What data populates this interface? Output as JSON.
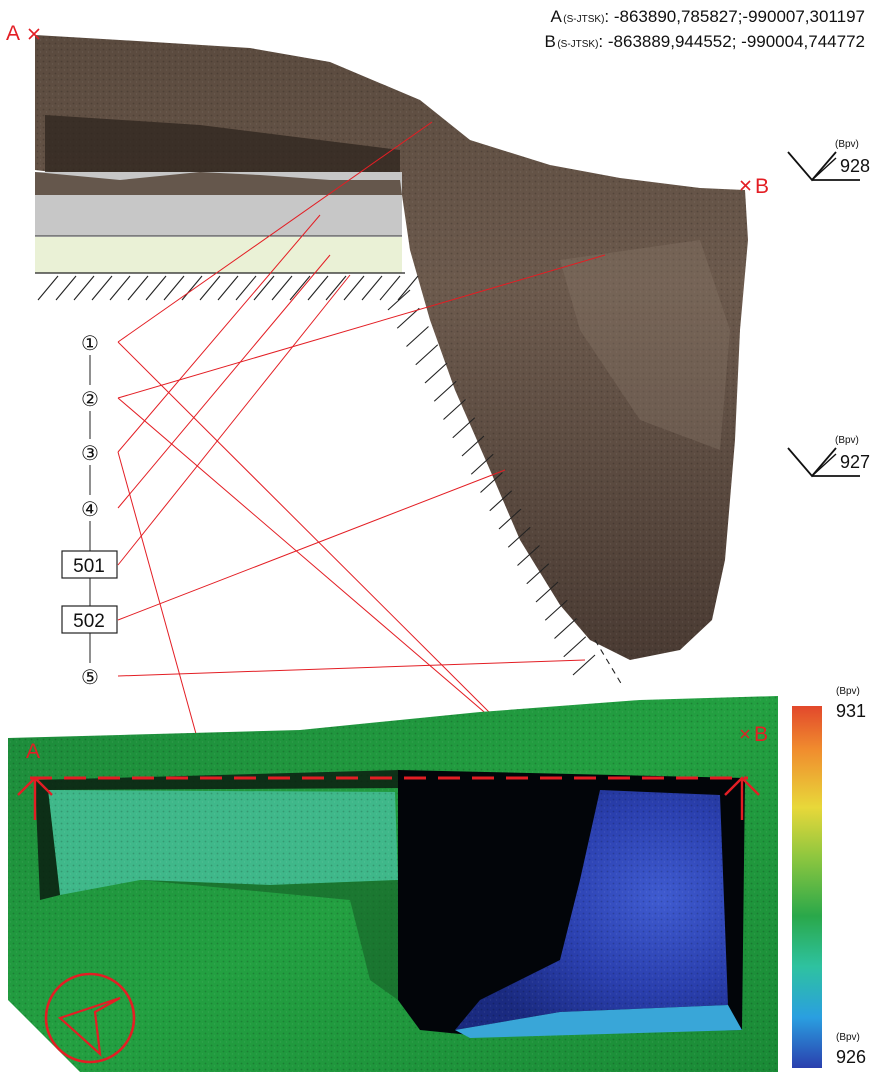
{
  "header": {
    "point_a": {
      "name": "A",
      "system": "(S-JTSK)",
      "coords": ": -863890,785827;-990007,301197"
    },
    "point_b": {
      "name": "B",
      "system": "(S-JTSK)",
      "coords": ": -863889,944552;   -990004,744772"
    }
  },
  "section": {
    "label_a": "A",
    "label_b": "B",
    "levels": [
      {
        "unit": "(Bpv)",
        "value": "928"
      },
      {
        "unit": "(Bpv)",
        "value": "927"
      }
    ]
  },
  "layers": [
    "①",
    "②",
    "③",
    "④",
    "501",
    "502",
    "⑤"
  ],
  "plan": {
    "label_a": "A",
    "label_b": "B"
  },
  "color_scale": {
    "unit_top": "(Bpv)",
    "max": "931",
    "unit_bottom": "(Bpv)",
    "min": "926"
  },
  "colors": {
    "marker_red": "#e31e24",
    "soil_dark": "#4e3f35",
    "soil_mid": "#6f5c4f",
    "grey_layer": "#c7c7c7",
    "light_green_layer": "#eaf1d6",
    "terrain_green": "#1f8a3b",
    "terrain_teal": "#3fb88a",
    "pit_blue": "#2a3fae"
  }
}
